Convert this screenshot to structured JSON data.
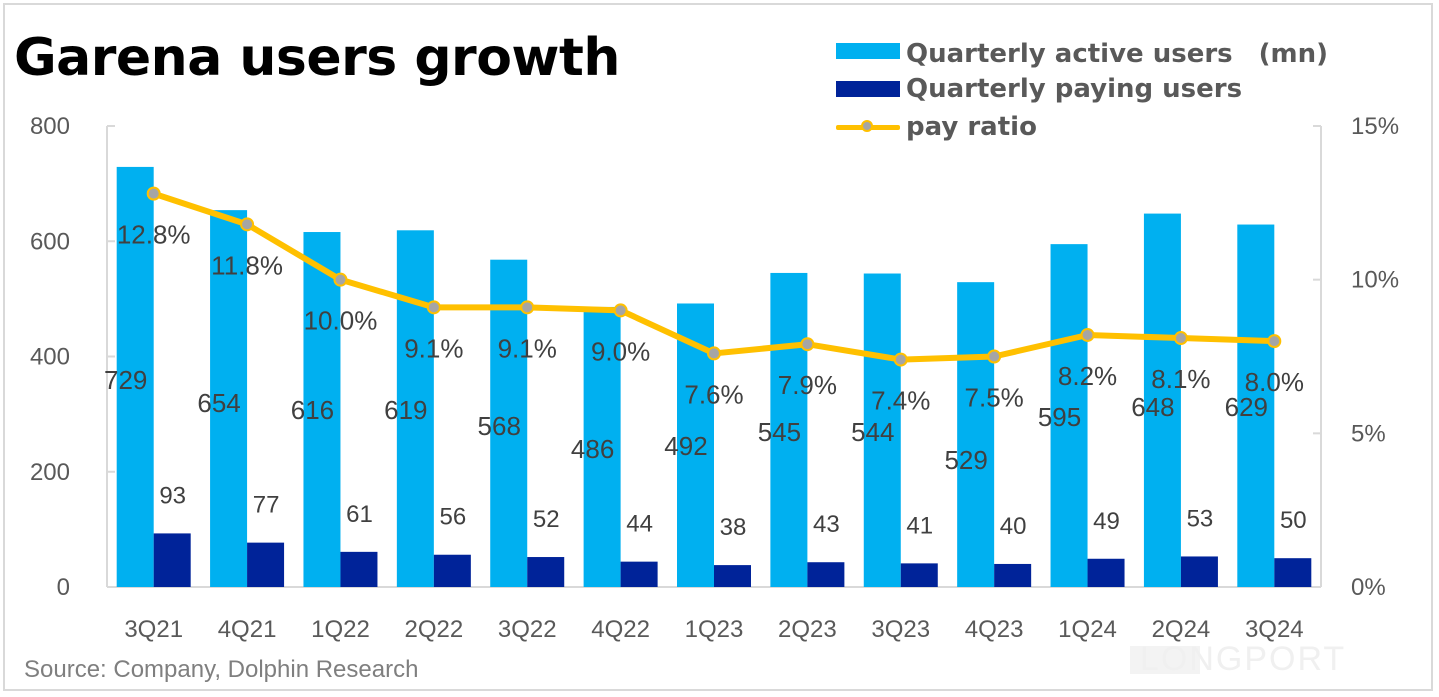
{
  "title": "Garena users growth",
  "legend": {
    "active": "Quarterly active users　(mn)",
    "paying": "Quarterly paying users",
    "ratio": "pay ratio"
  },
  "source": "Source: Company, Dolphin Research",
  "watermark": "LONGPORT",
  "colors": {
    "active": "#00b0f0",
    "paying": "#002399",
    "ratio_line": "#ffc000",
    "ratio_marker": "#a5a5a5",
    "axis_text": "#595959",
    "label_text": "#404040",
    "axis_line": "#d9d9d9"
  },
  "chart_data": {
    "type": "bar",
    "title": "Garena users growth",
    "categories": [
      "3Q21",
      "4Q21",
      "1Q22",
      "2Q22",
      "3Q22",
      "4Q22",
      "1Q23",
      "2Q23",
      "3Q23",
      "4Q23",
      "1Q24",
      "2Q24",
      "3Q24"
    ],
    "series": [
      {
        "name": "Quarterly active users　(mn)",
        "type": "bar",
        "axis": "left",
        "values": [
          729,
          654,
          616,
          619,
          568,
          486,
          492,
          545,
          544,
          529,
          595,
          648,
          629
        ]
      },
      {
        "name": "Quarterly paying users",
        "type": "bar",
        "axis": "left",
        "values": [
          93,
          77,
          61,
          56,
          52,
          44,
          38,
          43,
          41,
          40,
          49,
          53,
          50
        ]
      },
      {
        "name": "pay ratio",
        "type": "line",
        "axis": "right",
        "values": [
          12.8,
          11.8,
          10.0,
          9.1,
          9.1,
          9.0,
          7.6,
          7.9,
          7.4,
          7.5,
          8.2,
          8.1,
          8.0
        ],
        "labels": [
          "12.8%",
          "11.8%",
          "10.0%",
          "9.1%",
          "9.1%",
          "9.0%",
          "7.6%",
          "7.9%",
          "7.4%",
          "7.5%",
          "8.2%",
          "8.1%",
          "8.0%"
        ]
      }
    ],
    "y_left": {
      "ylim": [
        0,
        800
      ],
      "ticks": [
        0,
        200,
        400,
        600,
        800
      ],
      "tick_labels": [
        "0",
        "200",
        "400",
        "600",
        "800"
      ]
    },
    "y_right": {
      "ylim": [
        0,
        15
      ],
      "ticks": [
        0,
        5,
        10,
        15
      ],
      "tick_labels": [
        "0%",
        "5%",
        "10%",
        "15%"
      ]
    },
    "xlabel": "",
    "ylabel": "",
    "grid": false,
    "legend_position": "top-right"
  }
}
